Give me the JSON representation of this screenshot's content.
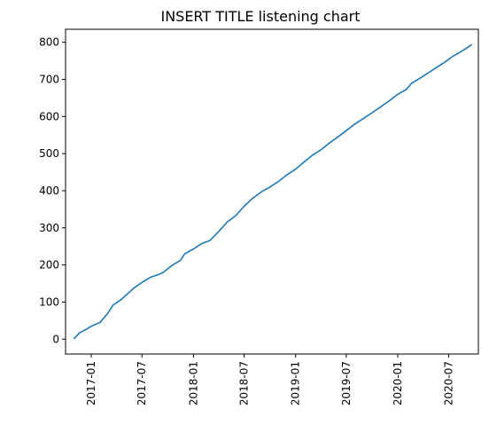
{
  "chart_data": {
    "type": "line",
    "title": "INSERT TITLE listening chart",
    "xlabel": "",
    "ylabel": "",
    "xlim": [
      "2016-10-01",
      "2020-10-15"
    ],
    "ylim": [
      -40,
      835
    ],
    "x_ticks": [
      "2017-01",
      "2017-07",
      "2018-01",
      "2018-07",
      "2019-01",
      "2019-07",
      "2020-01",
      "2020-07"
    ],
    "y_ticks": [
      0,
      100,
      200,
      300,
      400,
      500,
      600,
      700,
      800
    ],
    "grid": false,
    "legend": "none",
    "series": [
      {
        "color": "#1f77b4",
        "points": [
          [
            "2016-11-01",
            2
          ],
          [
            "2016-11-20",
            17
          ],
          [
            "2016-12-10",
            25
          ],
          [
            "2017-01-01",
            35
          ],
          [
            "2017-02-01",
            45
          ],
          [
            "2017-03-01",
            70
          ],
          [
            "2017-03-20",
            92
          ],
          [
            "2017-04-15",
            105
          ],
          [
            "2017-05-10",
            122
          ],
          [
            "2017-06-01",
            137
          ],
          [
            "2017-07-01",
            153
          ],
          [
            "2017-08-01",
            167
          ],
          [
            "2017-09-01",
            175
          ],
          [
            "2017-09-15",
            180
          ],
          [
            "2017-10-15",
            198
          ],
          [
            "2017-11-15",
            212
          ],
          [
            "2017-12-01",
            230
          ],
          [
            "2018-01-01",
            243
          ],
          [
            "2018-02-01",
            258
          ],
          [
            "2018-03-01",
            266
          ],
          [
            "2018-04-01",
            290
          ],
          [
            "2018-05-01",
            315
          ],
          [
            "2018-06-01",
            333
          ],
          [
            "2018-07-01",
            358
          ],
          [
            "2018-08-01",
            380
          ],
          [
            "2018-09-01",
            397
          ],
          [
            "2018-10-01",
            410
          ],
          [
            "2018-11-01",
            425
          ],
          [
            "2018-12-01",
            443
          ],
          [
            "2019-01-01",
            458
          ],
          [
            "2019-02-01",
            478
          ],
          [
            "2019-03-01",
            495
          ],
          [
            "2019-04-01",
            510
          ],
          [
            "2019-05-01",
            528
          ],
          [
            "2019-06-01",
            545
          ],
          [
            "2019-07-01",
            562
          ],
          [
            "2019-08-01",
            580
          ],
          [
            "2019-09-01",
            595
          ],
          [
            "2019-10-01",
            610
          ],
          [
            "2019-11-01",
            626
          ],
          [
            "2019-12-01",
            642
          ],
          [
            "2020-01-01",
            660
          ],
          [
            "2020-02-01",
            673
          ],
          [
            "2020-02-20",
            690
          ],
          [
            "2020-03-20",
            703
          ],
          [
            "2020-04-20",
            718
          ],
          [
            "2020-05-20",
            733
          ],
          [
            "2020-06-20",
            748
          ],
          [
            "2020-07-15",
            762
          ],
          [
            "2020-08-15",
            775
          ],
          [
            "2020-09-20",
            793
          ]
        ]
      }
    ]
  }
}
